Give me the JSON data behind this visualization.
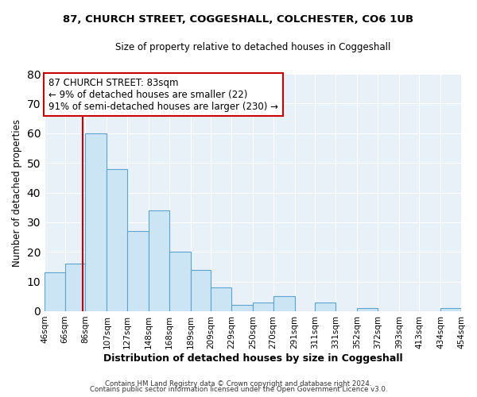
{
  "title": "87, CHURCH STREET, COGGESHALL, COLCHESTER, CO6 1UB",
  "subtitle": "Size of property relative to detached houses in Coggeshall",
  "xlabel": "Distribution of detached houses by size in Coggeshall",
  "ylabel": "Number of detached properties",
  "footer_lines": [
    "Contains HM Land Registry data © Crown copyright and database right 2024.",
    "Contains public sector information licensed under the Open Government Licence v3.0."
  ],
  "bin_edges": [
    46,
    66,
    86,
    107,
    127,
    148,
    168,
    189,
    209,
    229,
    250,
    270,
    291,
    311,
    331,
    352,
    372,
    393,
    413,
    434,
    454
  ],
  "bin_labels": [
    "46sqm",
    "66sqm",
    "86sqm",
    "107sqm",
    "127sqm",
    "148sqm",
    "168sqm",
    "189sqm",
    "209sqm",
    "229sqm",
    "250sqm",
    "270sqm",
    "291sqm",
    "311sqm",
    "331sqm",
    "352sqm",
    "372sqm",
    "393sqm",
    "413sqm",
    "434sqm",
    "454sqm"
  ],
  "counts": [
    13,
    16,
    60,
    48,
    27,
    34,
    20,
    14,
    8,
    2,
    3,
    5,
    0,
    3,
    0,
    1,
    0,
    0,
    0,
    1
  ],
  "bar_color": "#cce5f5",
  "bar_edge_color": "#5ba3d0",
  "property_line_x": 83,
  "property_line_color": "#cc0000",
  "annotation_text": "87 CHURCH STREET: 83sqm\n← 9% of detached houses are smaller (22)\n91% of semi-detached houses are larger (230) →",
  "annotation_box_color": "#ffffff",
  "annotation_box_edge_color": "#cc0000",
  "ylim": [
    0,
    80
  ],
  "yticks": [
    0,
    10,
    20,
    30,
    40,
    50,
    60,
    70,
    80
  ],
  "background_color": "#ffffff",
  "plot_bg_color": "#e8f0f8",
  "grid_color": "#ffffff"
}
